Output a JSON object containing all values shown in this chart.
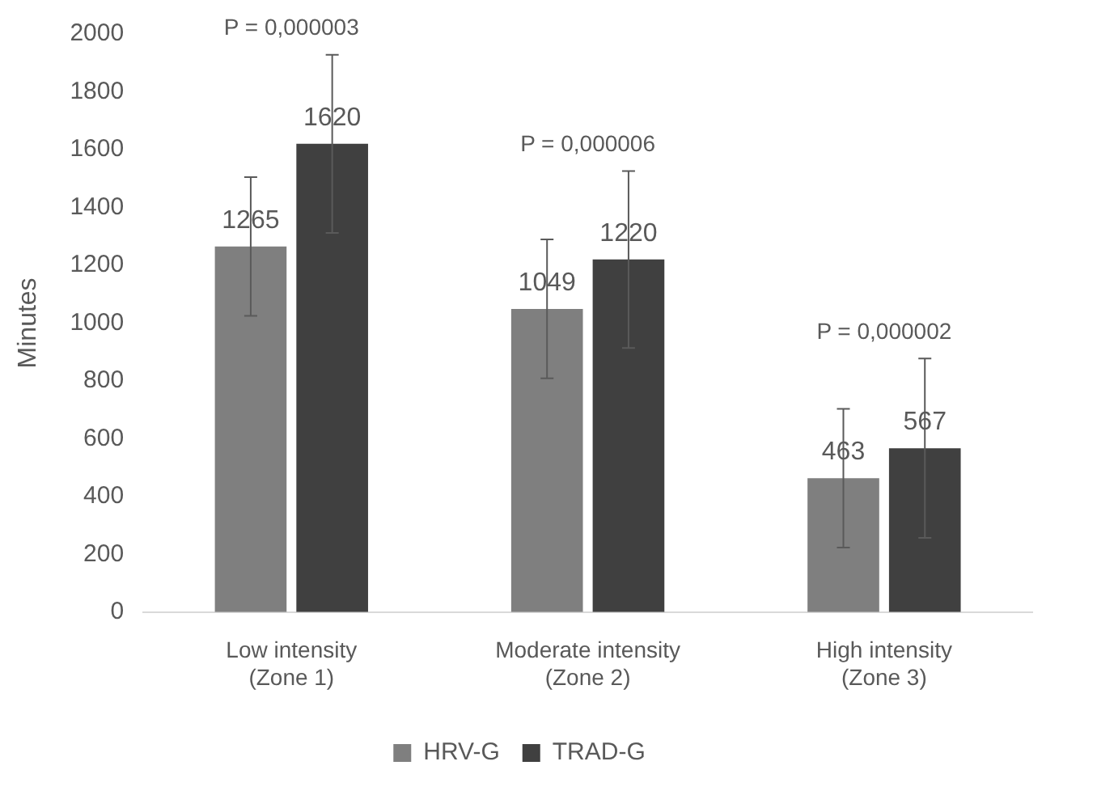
{
  "chart_data": {
    "type": "bar",
    "ylabel": "Minutes",
    "categories": [
      "Low intensity (Zone 1)",
      "Moderate intensity (Zone 2)",
      "High intensity (Zone 3)"
    ],
    "series": [
      {
        "name": "HRV-G",
        "color": "#7f7f7f",
        "values": [
          1265,
          1049,
          463
        ],
        "errors": [
          240,
          240,
          240
        ]
      },
      {
        "name": "TRAD-G",
        "color": "#404040",
        "values": [
          1620,
          1220,
          567
        ],
        "errors": [
          308,
          306,
          310
        ]
      }
    ],
    "ylim": [
      0,
      2000
    ],
    "yticks": [
      0,
      200,
      400,
      600,
      800,
      1000,
      1200,
      1400,
      1600,
      1800,
      2000
    ],
    "grid": false,
    "legend": "bottom",
    "data_labels": true,
    "annotations": [
      "P = 0,000003",
      "P = 0,000006",
      "P = 0,000002"
    ]
  }
}
